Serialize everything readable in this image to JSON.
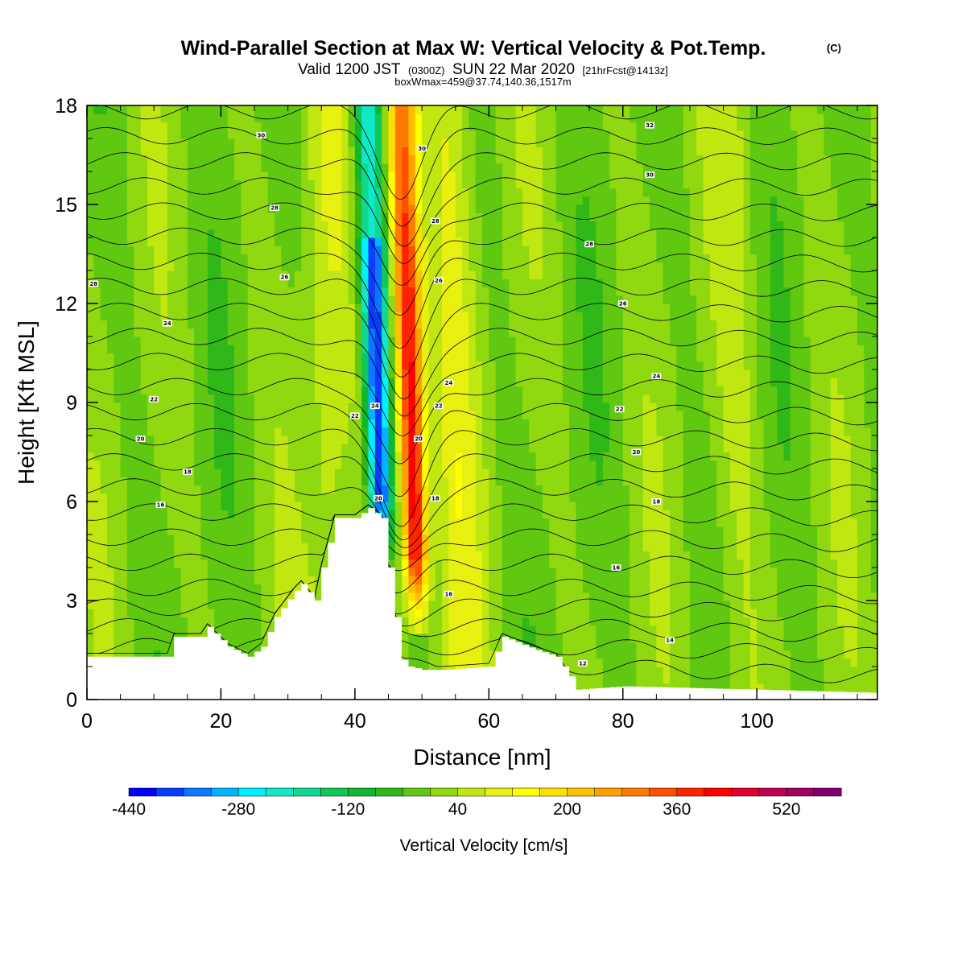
{
  "title": {
    "main": "Wind-Parallel Section at Max W: Vertical Velocity & Pot.Temp.",
    "copyright": "(C)",
    "valid_prefix": "Valid 1200 JST",
    "valid_utc": "(0300Z)",
    "valid_date": "SUN 22 Mar 2020",
    "forecast": "[21hrFcst@1413z]",
    "boxmax": "boxWmax=459@37.74,140.36,1517m"
  },
  "chart_data": {
    "type": "heatmap",
    "overlay": "contour",
    "title": "Wind-Parallel Section at Max W: Vertical Velocity & Pot.Temp.",
    "xlabel": "Distance [nm]",
    "ylabel": "Height [Kft MSL]",
    "xlim": [
      0,
      118
    ],
    "ylim": [
      0,
      18
    ],
    "x_ticks": [
      0,
      20,
      40,
      60,
      80,
      100
    ],
    "x_tick_labels": [
      "0",
      "20",
      "40",
      "60",
      "80",
      "100"
    ],
    "y_ticks": [
      0,
      3,
      6,
      9,
      12,
      15,
      18
    ],
    "y_tick_labels": [
      "0",
      "3",
      "6",
      "9",
      "12",
      "15",
      "18"
    ],
    "colorbar": {
      "label": "Vertical Velocity [cm/s]",
      "min": -440,
      "max": 600,
      "step": 40,
      "tick_values": [
        -440,
        -280,
        -120,
        40,
        200,
        360,
        520
      ],
      "tick_labels": [
        "-440",
        "-280",
        "-120",
        "40",
        "200",
        "360",
        "520"
      ],
      "colors": [
        "#0000ff",
        "#0a3cff",
        "#0a78ff",
        "#00b4ff",
        "#00f0ff",
        "#10e8c8",
        "#10d890",
        "#10c858",
        "#10b830",
        "#30b818",
        "#60c810",
        "#90d810",
        "#c0e810",
        "#e8f010",
        "#ffff00",
        "#ffe000",
        "#ffc000",
        "#ffa000",
        "#ff7a00",
        "#ff5000",
        "#ff2400",
        "#ff0000",
        "#e00030",
        "#c00050",
        "#a00060",
        "#800070"
      ]
    },
    "vertical_velocity_features_cm_s": [
      {
        "feature": "updraft core",
        "x": 48.5,
        "y_range": [
          2,
          18
        ],
        "peak": 459
      },
      {
        "feature": "downdraft core",
        "x": 43.5,
        "y_range": [
          4,
          16
        ],
        "peak": -400
      },
      {
        "feature": "weak ascent band",
        "x": 36,
        "y_range": [
          3,
          18
        ],
        "peak": 60
      },
      {
        "feature": "weak ascent band",
        "x": 55,
        "y_range": [
          3,
          18
        ],
        "peak": 80
      },
      {
        "feature": "weak ascent band",
        "x": 97,
        "y_range": [
          3,
          14
        ],
        "peak": 40
      }
    ],
    "potential_temperature_contours_C": {
      "interval": 1,
      "labeled": [
        12,
        14,
        16,
        18,
        20,
        22,
        24,
        26,
        28,
        30,
        32
      ],
      "mountain_wave_dip": {
        "x": 47,
        "amplitude_kft": 2.5
      }
    },
    "terrain_kft": {
      "x": [
        0,
        12,
        13,
        17,
        18,
        21,
        24,
        26,
        28,
        31,
        32,
        34,
        35,
        37,
        39,
        40,
        42,
        44,
        45,
        46,
        47,
        48,
        50,
        53,
        60,
        62,
        67,
        70,
        72,
        73,
        80,
        100,
        118
      ],
      "height": [
        1.3,
        1.3,
        1.9,
        1.9,
        2.2,
        1.6,
        1.3,
        1.6,
        2.5,
        3.3,
        3.5,
        3.0,
        4.0,
        5.5,
        5.5,
        5.5,
        5.8,
        5.5,
        4.0,
        2.5,
        1.2,
        1.0,
        0.9,
        0.9,
        1.0,
        1.9,
        1.5,
        1.3,
        0.7,
        0.3,
        0.4,
        0.3,
        0.2
      ]
    }
  },
  "contour_labels": [
    {
      "text": "30",
      "x": 26,
      "y": 17.1
    },
    {
      "text": "28",
      "x": 28,
      "y": 14.9
    },
    {
      "text": "26",
      "x": 29.5,
      "y": 12.8
    },
    {
      "text": "24",
      "x": 12,
      "y": 11.4
    },
    {
      "text": "22",
      "x": 10,
      "y": 9.1
    },
    {
      "text": "20",
      "x": 8,
      "y": 7.9
    },
    {
      "text": "18",
      "x": 15,
      "y": 6.9
    },
    {
      "text": "16",
      "x": 11,
      "y": 5.9
    },
    {
      "text": "28",
      "x": 1,
      "y": 12.6
    },
    {
      "text": "30",
      "x": 50,
      "y": 16.7
    },
    {
      "text": "28",
      "x": 52,
      "y": 14.5
    },
    {
      "text": "26",
      "x": 52.5,
      "y": 12.7
    },
    {
      "text": "24",
      "x": 43,
      "y": 8.9
    },
    {
      "text": "22",
      "x": 40,
      "y": 8.6
    },
    {
      "text": "24",
      "x": 54,
      "y": 9.6
    },
    {
      "text": "22",
      "x": 52.5,
      "y": 8.9
    },
    {
      "text": "20",
      "x": 49.5,
      "y": 7.9
    },
    {
      "text": "20",
      "x": 43.5,
      "y": 6.1
    },
    {
      "text": "18",
      "x": 52,
      "y": 6.1
    },
    {
      "text": "16",
      "x": 54,
      "y": 3.2
    },
    {
      "text": "32",
      "x": 84,
      "y": 17.4
    },
    {
      "text": "30",
      "x": 84,
      "y": 15.9
    },
    {
      "text": "28",
      "x": 75,
      "y": 13.8
    },
    {
      "text": "26",
      "x": 80,
      "y": 12.0
    },
    {
      "text": "24",
      "x": 85,
      "y": 9.8
    },
    {
      "text": "22",
      "x": 79.5,
      "y": 8.8
    },
    {
      "text": "20",
      "x": 82,
      "y": 7.5
    },
    {
      "text": "18",
      "x": 85,
      "y": 6.0
    },
    {
      "text": "16",
      "x": 79,
      "y": 4.0
    },
    {
      "text": "14",
      "x": 87,
      "y": 1.8
    },
    {
      "text": "12",
      "x": 74,
      "y": 1.1
    }
  ]
}
